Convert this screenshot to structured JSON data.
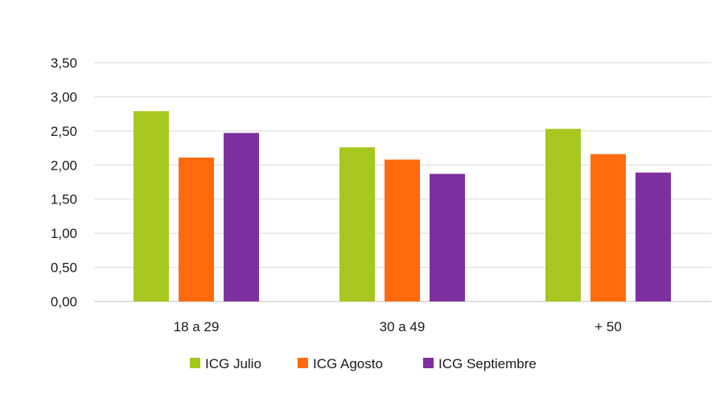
{
  "chart_data": {
    "type": "bar",
    "title": "",
    "xlabel": "",
    "ylabel": "",
    "categories": [
      "18 a 29",
      "30 a 49",
      "+ 50"
    ],
    "series": [
      {
        "name": "ICG Julio",
        "values": [
          2.79,
          2.26,
          2.53
        ],
        "color": "#A6C71F"
      },
      {
        "name": "ICG Agosto",
        "values": [
          2.11,
          2.08,
          2.16
        ],
        "color": "#FF6A0F"
      },
      {
        "name": "ICG Septiembre",
        "values": [
          2.47,
          1.87,
          1.89
        ],
        "color": "#7E2FA0"
      }
    ],
    "ylim": [
      0,
      3.5
    ],
    "yticks": [
      "0,00",
      "0,50",
      "1,00",
      "1,50",
      "2,00",
      "2,50",
      "3,00",
      "3,50"
    ],
    "grid": true,
    "legend_position": "bottom"
  }
}
